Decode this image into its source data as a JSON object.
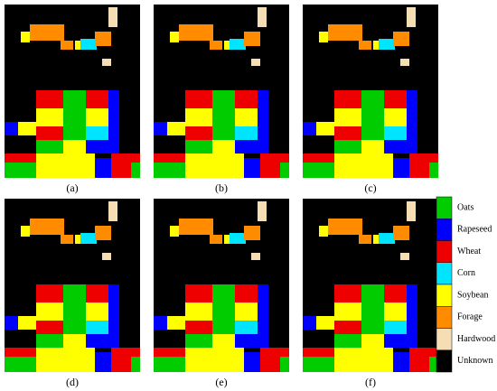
{
  "panels": [
    {
      "label": "(a)"
    },
    {
      "label": "(b)"
    },
    {
      "label": "(c)"
    },
    {
      "label": "(d)"
    },
    {
      "label": "(e)"
    },
    {
      "label": "(f)"
    }
  ],
  "legend": [
    {
      "label": "Oats",
      "color": "#00cc00"
    },
    {
      "label": "Rapeseed",
      "color": "#0000ff"
    },
    {
      "label": "Wheat",
      "color": "#ee0000"
    },
    {
      "label": "Corn",
      "color": "#00e5ff"
    },
    {
      "label": "Soybean",
      "color": "#ffff00"
    },
    {
      "label": "Forage",
      "color": "#ff8c00"
    },
    {
      "label": "Hardwood",
      "color": "#f5deb3"
    },
    {
      "label": "Unknown",
      "color": "#000000"
    }
  ]
}
